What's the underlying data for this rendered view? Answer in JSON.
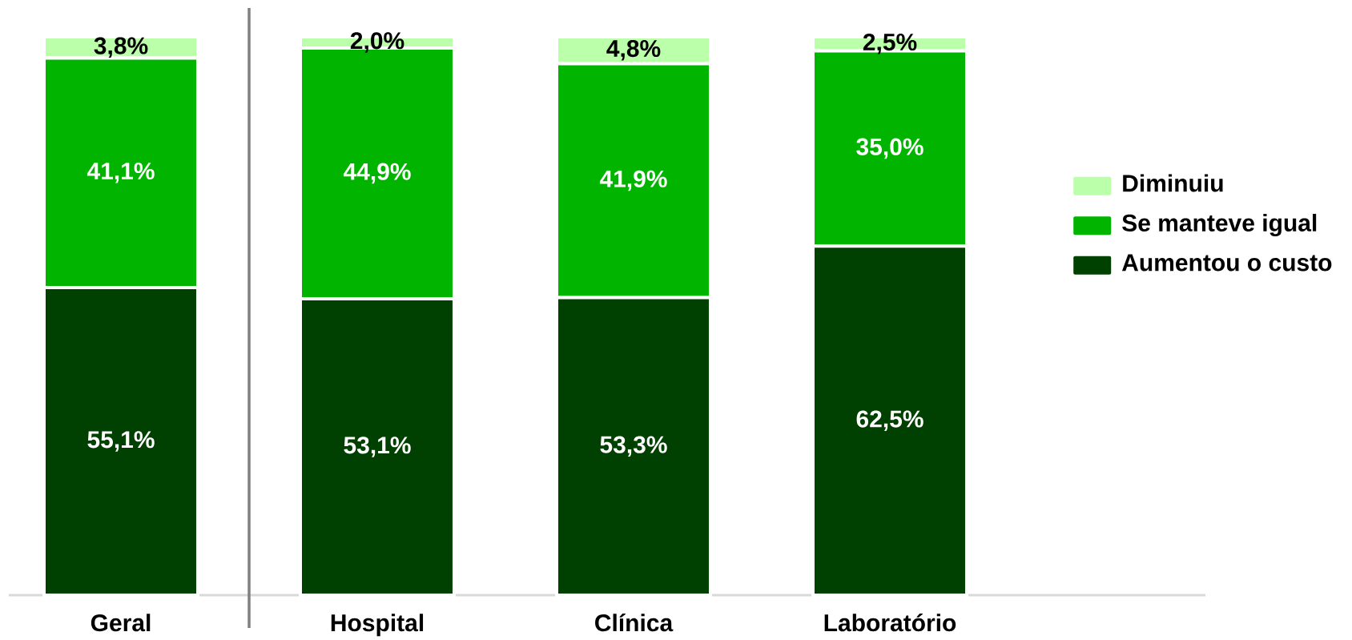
{
  "chart_data": {
    "type": "bar",
    "stacked": true,
    "categories": [
      "Geral",
      "Hospital",
      "Clínica",
      "Laboratório"
    ],
    "series": [
      {
        "name": "Aumentou o custo",
        "color": "#004000",
        "values": [
          55.1,
          53.1,
          53.3,
          62.5
        ],
        "value_labels": [
          "55,1%",
          "53,1%",
          "53,3%",
          "62,5%"
        ]
      },
      {
        "name": "Se manteve igual",
        "color": "#00b400",
        "values": [
          41.1,
          44.9,
          41.9,
          35.0
        ],
        "value_labels": [
          "41,1%",
          "44,9%",
          "41,9%",
          "35,0%"
        ]
      },
      {
        "name": "Diminuiu",
        "color": "#bbffaa",
        "values": [
          3.8,
          2.0,
          4.8,
          2.5
        ],
        "value_labels": [
          "3,8%",
          "2,0%",
          "4,8%",
          "2,5%"
        ]
      }
    ],
    "ylim": [
      0,
      100
    ],
    "tick_labels": "x",
    "legend": "right"
  }
}
